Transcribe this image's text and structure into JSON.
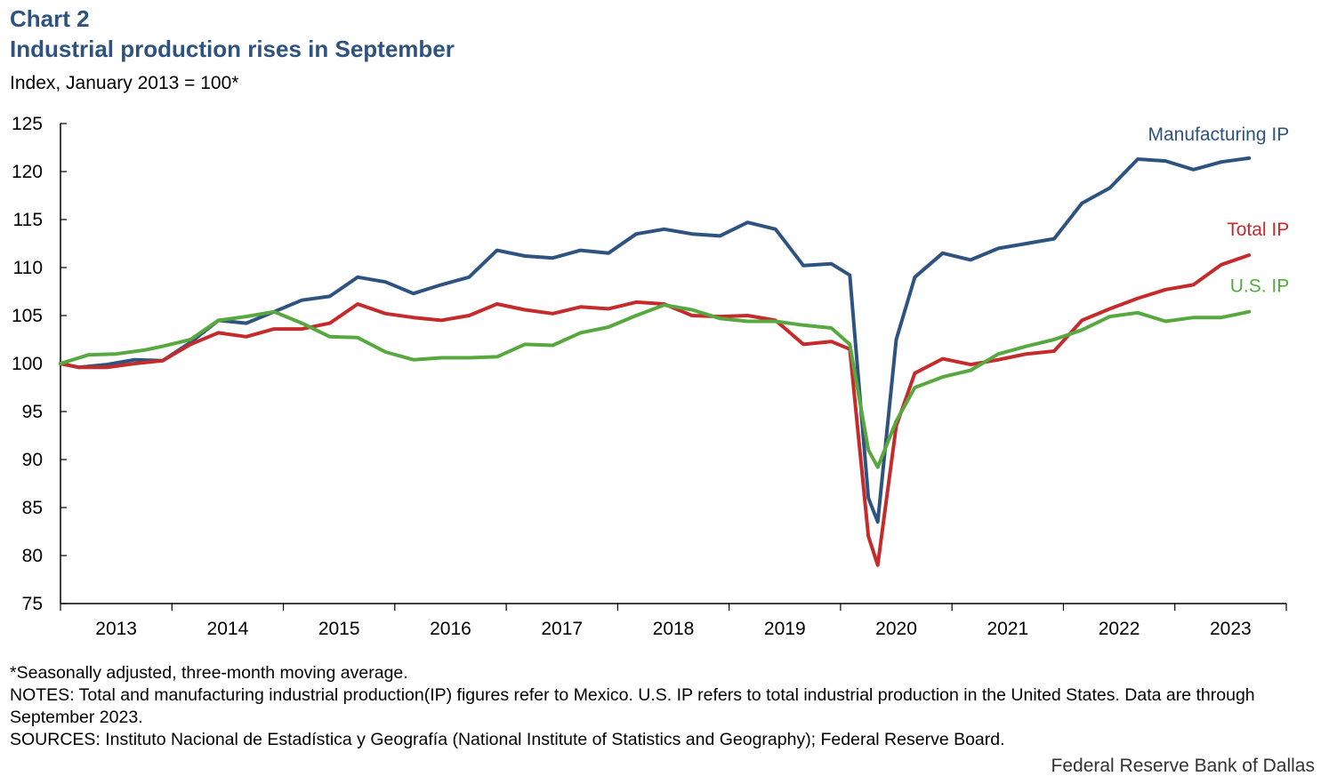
{
  "header": {
    "label": "Chart 2",
    "title": "Industrial production rises in September",
    "subtitle": "Index, January 2013 = 100*"
  },
  "notes": {
    "adjusted": "*Seasonally adjusted, three-month moving average.",
    "notes": "NOTES: Total and manufacturing industrial production(IP) figures refer to Mexico. U.S. IP refers to total industrial production in the United States. Data are through September 2023.",
    "sources": "SOURCES: Instituto Nacional de Estadística y Geografía (National Institute of Statistics and Geography); Federal Reserve Board."
  },
  "credit": "Federal Reserve Bank of Dallas",
  "chart_data": {
    "type": "line",
    "title": "Industrial production rises in September",
    "ylabel": "Index, January 2013 = 100*",
    "xlabel": "",
    "ylim": [
      75,
      125
    ],
    "yticks": [
      75,
      80,
      85,
      90,
      95,
      100,
      105,
      110,
      115,
      120,
      125
    ],
    "xticks": [
      "2013",
      "2014",
      "2015",
      "2016",
      "2017",
      "2018",
      "2019",
      "2020",
      "2021",
      "2022",
      "2023"
    ],
    "x_start": "2013-01",
    "x_end": "2023-09",
    "grid": false,
    "series": [
      {
        "name": "Manufacturing IP",
        "color": "#2f5380",
        "label_position": "top-right",
        "points": [
          [
            "2013-01",
            100
          ],
          [
            "2013-03",
            99.6
          ],
          [
            "2013-06",
            99.9
          ],
          [
            "2013-09",
            100.4
          ],
          [
            "2013-12",
            100.3
          ],
          [
            "2014-03",
            102.2
          ],
          [
            "2014-06",
            104.5
          ],
          [
            "2014-09",
            104.2
          ],
          [
            "2014-12",
            105.4
          ],
          [
            "2015-03",
            106.6
          ],
          [
            "2015-06",
            107.0
          ],
          [
            "2015-09",
            109.0
          ],
          [
            "2015-12",
            108.5
          ],
          [
            "2016-03",
            107.3
          ],
          [
            "2016-06",
            108.2
          ],
          [
            "2016-09",
            109.0
          ],
          [
            "2016-12",
            111.8
          ],
          [
            "2017-03",
            111.2
          ],
          [
            "2017-06",
            111.0
          ],
          [
            "2017-09",
            111.8
          ],
          [
            "2017-12",
            111.5
          ],
          [
            "2018-03",
            113.5
          ],
          [
            "2018-06",
            114.0
          ],
          [
            "2018-09",
            113.5
          ],
          [
            "2018-12",
            113.3
          ],
          [
            "2019-03",
            114.7
          ],
          [
            "2019-06",
            114.0
          ],
          [
            "2019-09",
            110.2
          ],
          [
            "2019-12",
            110.4
          ],
          [
            "2020-02",
            109.2
          ],
          [
            "2020-04",
            86.0
          ],
          [
            "2020-05",
            83.5
          ],
          [
            "2020-07",
            102.5
          ],
          [
            "2020-09",
            109.0
          ],
          [
            "2020-12",
            111.5
          ],
          [
            "2021-03",
            110.8
          ],
          [
            "2021-06",
            112.0
          ],
          [
            "2021-09",
            112.5
          ],
          [
            "2021-12",
            113.0
          ],
          [
            "2022-03",
            116.7
          ],
          [
            "2022-06",
            118.3
          ],
          [
            "2022-09",
            121.3
          ],
          [
            "2022-12",
            121.1
          ],
          [
            "2023-03",
            120.2
          ],
          [
            "2023-06",
            121.0
          ],
          [
            "2023-09",
            121.4
          ]
        ]
      },
      {
        "name": "Total IP",
        "color": "#c62b2b",
        "label_position": "right",
        "points": [
          [
            "2013-01",
            100
          ],
          [
            "2013-03",
            99.6
          ],
          [
            "2013-06",
            99.6
          ],
          [
            "2013-09",
            100.0
          ],
          [
            "2013-12",
            100.3
          ],
          [
            "2014-03",
            102.0
          ],
          [
            "2014-06",
            103.2
          ],
          [
            "2014-09",
            102.8
          ],
          [
            "2014-12",
            103.6
          ],
          [
            "2015-03",
            103.6
          ],
          [
            "2015-06",
            104.2
          ],
          [
            "2015-09",
            106.2
          ],
          [
            "2015-12",
            105.2
          ],
          [
            "2016-03",
            104.8
          ],
          [
            "2016-06",
            104.5
          ],
          [
            "2016-09",
            105.0
          ],
          [
            "2016-12",
            106.2
          ],
          [
            "2017-03",
            105.6
          ],
          [
            "2017-06",
            105.2
          ],
          [
            "2017-09",
            105.9
          ],
          [
            "2017-12",
            105.7
          ],
          [
            "2018-03",
            106.4
          ],
          [
            "2018-06",
            106.2
          ],
          [
            "2018-09",
            105.0
          ],
          [
            "2018-12",
            104.9
          ],
          [
            "2019-03",
            105.0
          ],
          [
            "2019-06",
            104.5
          ],
          [
            "2019-09",
            102.0
          ],
          [
            "2019-12",
            102.3
          ],
          [
            "2020-02",
            101.5
          ],
          [
            "2020-04",
            82.0
          ],
          [
            "2020-05",
            79.0
          ],
          [
            "2020-07",
            93.5
          ],
          [
            "2020-09",
            99.0
          ],
          [
            "2020-12",
            100.5
          ],
          [
            "2021-03",
            99.9
          ],
          [
            "2021-06",
            100.4
          ],
          [
            "2021-09",
            101.0
          ],
          [
            "2021-12",
            101.3
          ],
          [
            "2022-03",
            104.5
          ],
          [
            "2022-06",
            105.7
          ],
          [
            "2022-09",
            106.8
          ],
          [
            "2022-12",
            107.7
          ],
          [
            "2023-03",
            108.2
          ],
          [
            "2023-06",
            110.3
          ],
          [
            "2023-09",
            111.3
          ]
        ]
      },
      {
        "name": "U.S. IP",
        "color": "#57a83f",
        "label_position": "right",
        "points": [
          [
            "2013-01",
            100
          ],
          [
            "2013-04",
            100.9
          ],
          [
            "2013-07",
            101.0
          ],
          [
            "2013-10",
            101.4
          ],
          [
            "2013-12",
            101.8
          ],
          [
            "2014-03",
            102.5
          ],
          [
            "2014-06",
            104.5
          ],
          [
            "2014-09",
            104.9
          ],
          [
            "2014-12",
            105.4
          ],
          [
            "2015-03",
            104.2
          ],
          [
            "2015-06",
            102.8
          ],
          [
            "2015-09",
            102.7
          ],
          [
            "2015-12",
            101.2
          ],
          [
            "2016-03",
            100.4
          ],
          [
            "2016-06",
            100.6
          ],
          [
            "2016-09",
            100.6
          ],
          [
            "2016-12",
            100.7
          ],
          [
            "2017-03",
            102.0
          ],
          [
            "2017-06",
            101.9
          ],
          [
            "2017-09",
            103.2
          ],
          [
            "2017-12",
            103.8
          ],
          [
            "2018-03",
            105.0
          ],
          [
            "2018-06",
            106.1
          ],
          [
            "2018-09",
            105.6
          ],
          [
            "2018-12",
            104.7
          ],
          [
            "2019-03",
            104.4
          ],
          [
            "2019-06",
            104.4
          ],
          [
            "2019-09",
            104.0
          ],
          [
            "2019-12",
            103.7
          ],
          [
            "2020-02",
            102.0
          ],
          [
            "2020-04",
            91.0
          ],
          [
            "2020-05",
            89.2
          ],
          [
            "2020-07",
            94.0
          ],
          [
            "2020-09",
            97.5
          ],
          [
            "2020-12",
            98.6
          ],
          [
            "2021-03",
            99.3
          ],
          [
            "2021-06",
            101.0
          ],
          [
            "2021-09",
            101.8
          ],
          [
            "2021-12",
            102.5
          ],
          [
            "2022-03",
            103.5
          ],
          [
            "2022-06",
            104.9
          ],
          [
            "2022-09",
            105.3
          ],
          [
            "2022-12",
            104.4
          ],
          [
            "2023-03",
            104.8
          ],
          [
            "2023-06",
            104.8
          ],
          [
            "2023-09",
            105.4
          ]
        ]
      }
    ]
  }
}
